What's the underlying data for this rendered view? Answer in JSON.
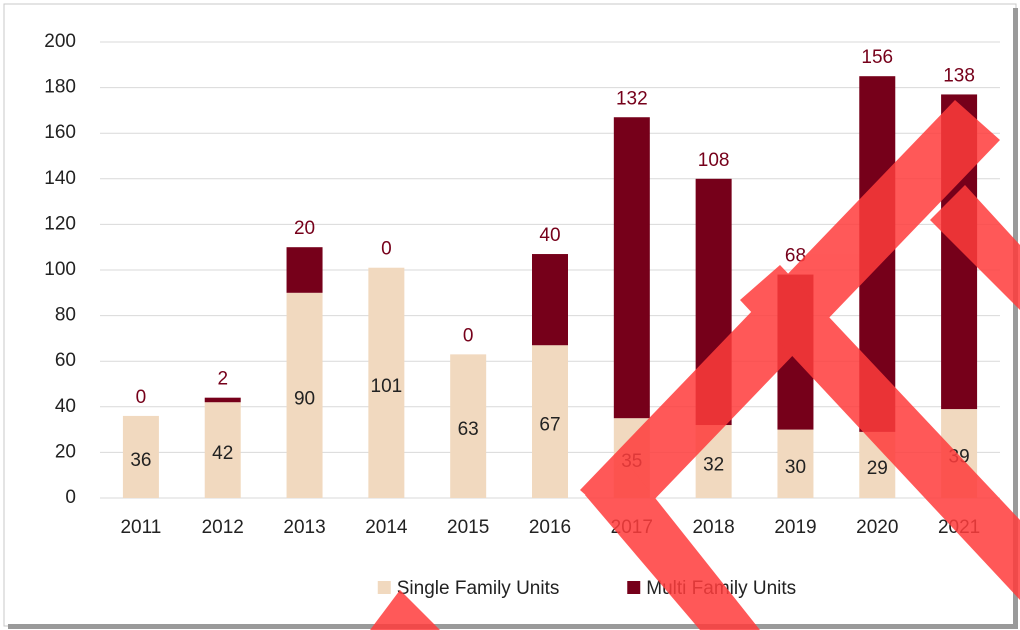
{
  "chart_data": {
    "type": "stacked_bar",
    "categories": [
      "2011",
      "2012",
      "2013",
      "2014",
      "2015",
      "2016",
      "2017",
      "2018",
      "2019",
      "2020",
      "2021"
    ],
    "series": [
      {
        "name": "Single Family Units",
        "color": "#f1d9bf",
        "values": [
          36,
          42,
          90,
          101,
          63,
          67,
          35,
          32,
          30,
          29,
          39
        ]
      },
      {
        "name": "Multi Family Units",
        "color": "#76001a",
        "values": [
          0,
          2,
          20,
          0,
          0,
          40,
          132,
          108,
          68,
          156,
          138
        ]
      }
    ],
    "ylim": [
      0,
      200
    ],
    "yticks": [
      0,
      20,
      40,
      60,
      80,
      100,
      120,
      140,
      160,
      180,
      200
    ],
    "grid": true,
    "legend": "bottom"
  }
}
